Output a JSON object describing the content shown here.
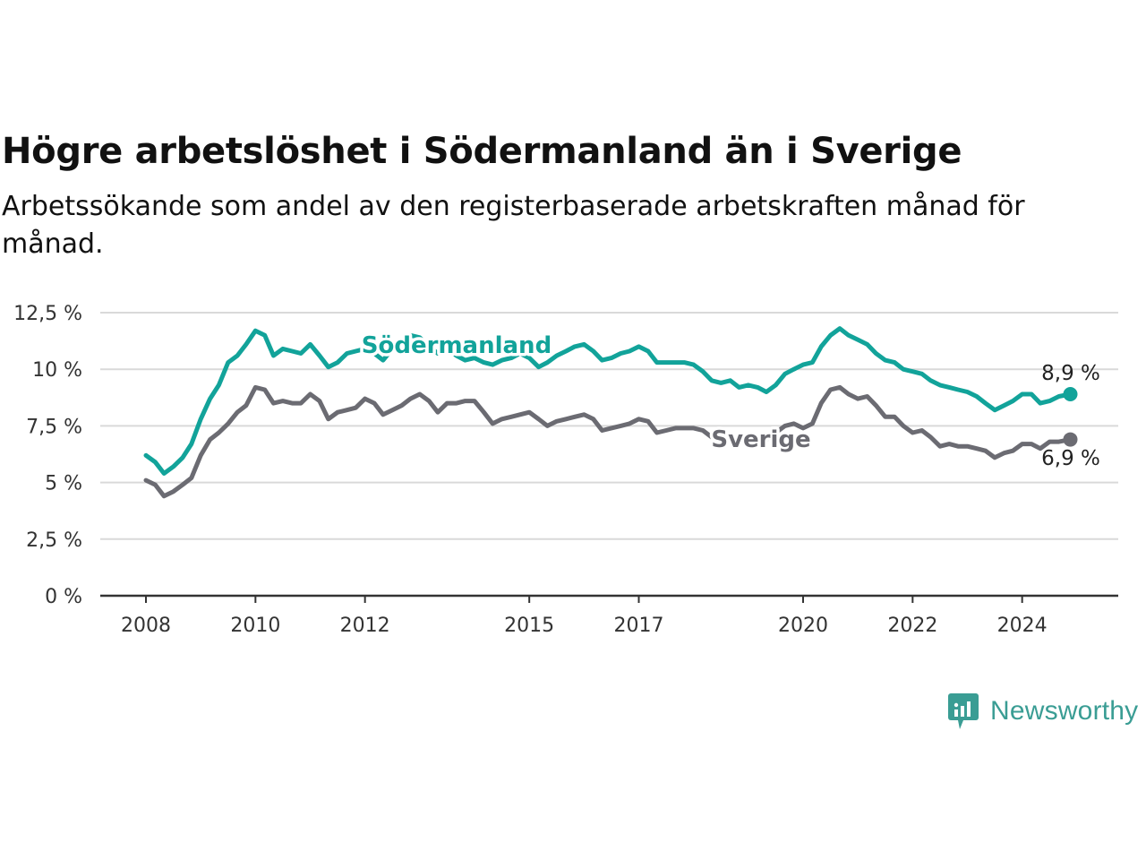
{
  "title": "Högre arbetslöshet i Södermanland än i Sverige",
  "subtitle": "Arbetssökande som andel av den registerbaserade arbetskraften månad för månad.",
  "brand": {
    "name": "Newsworthy",
    "icon": "newsworthy-logo-icon",
    "color": "#3a9d94"
  },
  "chart_data": {
    "type": "line",
    "ylim": [
      0,
      12.5
    ],
    "yticks": [
      "0 %",
      "2,5 %",
      "5 %",
      "7,5 %",
      "10 %",
      "12,5 %"
    ],
    "ytick_values": [
      0,
      2.5,
      5,
      7.5,
      10,
      12.5
    ],
    "xticks": [
      "2008",
      "2010",
      "2012",
      "2015",
      "2017",
      "2020",
      "2022",
      "2024"
    ],
    "xtick_values": [
      2008.0,
      2010.0,
      2012.0,
      2015.0,
      2017.0,
      2020.0,
      2022.0,
      2024.0
    ],
    "grid": true,
    "series": [
      {
        "name": "Södermanland",
        "color": "#12a39a",
        "end_label": "8,9 %",
        "points": [
          [
            2008.0,
            6.2
          ],
          [
            2008.17,
            5.9
          ],
          [
            2008.33,
            5.4
          ],
          [
            2008.5,
            5.7
          ],
          [
            2008.67,
            6.1
          ],
          [
            2008.83,
            6.7
          ],
          [
            2009.0,
            7.8
          ],
          [
            2009.17,
            8.7
          ],
          [
            2009.33,
            9.3
          ],
          [
            2009.5,
            10.3
          ],
          [
            2009.67,
            10.6
          ],
          [
            2009.83,
            11.1
          ],
          [
            2010.0,
            11.7
          ],
          [
            2010.17,
            11.5
          ],
          [
            2010.33,
            10.6
          ],
          [
            2010.5,
            10.9
          ],
          [
            2010.67,
            10.8
          ],
          [
            2010.83,
            10.7
          ],
          [
            2011.0,
            11.1
          ],
          [
            2011.17,
            10.6
          ],
          [
            2011.33,
            10.1
          ],
          [
            2011.5,
            10.3
          ],
          [
            2011.67,
            10.7
          ],
          [
            2011.83,
            10.8
          ],
          [
            2012.0,
            10.9
          ],
          [
            2012.17,
            10.7
          ],
          [
            2012.33,
            10.4
          ],
          [
            2012.5,
            10.9
          ],
          [
            2012.67,
            11.2
          ],
          [
            2012.83,
            11.5
          ],
          [
            2013.0,
            11.4
          ],
          [
            2013.17,
            11.0
          ],
          [
            2013.33,
            10.7
          ],
          [
            2013.5,
            10.9
          ],
          [
            2013.67,
            10.6
          ],
          [
            2013.83,
            10.4
          ],
          [
            2014.0,
            10.5
          ],
          [
            2014.17,
            10.3
          ],
          [
            2014.33,
            10.2
          ],
          [
            2014.5,
            10.4
          ],
          [
            2014.67,
            10.5
          ],
          [
            2014.83,
            10.7
          ],
          [
            2015.0,
            10.5
          ],
          [
            2015.17,
            10.1
          ],
          [
            2015.33,
            10.3
          ],
          [
            2015.5,
            10.6
          ],
          [
            2015.67,
            10.8
          ],
          [
            2015.83,
            11.0
          ],
          [
            2016.0,
            11.1
          ],
          [
            2016.17,
            10.8
          ],
          [
            2016.33,
            10.4
          ],
          [
            2016.5,
            10.5
          ],
          [
            2016.67,
            10.7
          ],
          [
            2016.83,
            10.8
          ],
          [
            2017.0,
            11.0
          ],
          [
            2017.17,
            10.8
          ],
          [
            2017.33,
            10.3
          ],
          [
            2017.5,
            10.3
          ],
          [
            2017.67,
            10.3
          ],
          [
            2017.83,
            10.3
          ],
          [
            2018.0,
            10.2
          ],
          [
            2018.17,
            9.9
          ],
          [
            2018.33,
            9.5
          ],
          [
            2018.5,
            9.4
          ],
          [
            2018.67,
            9.5
          ],
          [
            2018.83,
            9.2
          ],
          [
            2019.0,
            9.3
          ],
          [
            2019.17,
            9.2
          ],
          [
            2019.33,
            9.0
          ],
          [
            2019.5,
            9.3
          ],
          [
            2019.67,
            9.8
          ],
          [
            2019.83,
            10.0
          ],
          [
            2020.0,
            10.2
          ],
          [
            2020.17,
            10.3
          ],
          [
            2020.33,
            11.0
          ],
          [
            2020.5,
            11.5
          ],
          [
            2020.67,
            11.8
          ],
          [
            2020.83,
            11.5
          ],
          [
            2021.0,
            11.3
          ],
          [
            2021.17,
            11.1
          ],
          [
            2021.33,
            10.7
          ],
          [
            2021.5,
            10.4
          ],
          [
            2021.67,
            10.3
          ],
          [
            2021.83,
            10.0
          ],
          [
            2022.0,
            9.9
          ],
          [
            2022.17,
            9.8
          ],
          [
            2022.33,
            9.5
          ],
          [
            2022.5,
            9.3
          ],
          [
            2022.67,
            9.2
          ],
          [
            2022.83,
            9.1
          ],
          [
            2023.0,
            9.0
          ],
          [
            2023.17,
            8.8
          ],
          [
            2023.33,
            8.5
          ],
          [
            2023.5,
            8.2
          ],
          [
            2023.67,
            8.4
          ],
          [
            2023.83,
            8.6
          ],
          [
            2024.0,
            8.9
          ],
          [
            2024.17,
            8.9
          ],
          [
            2024.33,
            8.5
          ],
          [
            2024.5,
            8.6
          ],
          [
            2024.67,
            8.8
          ],
          [
            2024.88,
            8.9
          ]
        ]
      },
      {
        "name": "Sverige",
        "color": "#6b6b72",
        "end_label": "6,9 %",
        "points": [
          [
            2008.0,
            5.1
          ],
          [
            2008.17,
            4.9
          ],
          [
            2008.33,
            4.4
          ],
          [
            2008.5,
            4.6
          ],
          [
            2008.67,
            4.9
          ],
          [
            2008.83,
            5.2
          ],
          [
            2009.0,
            6.2
          ],
          [
            2009.17,
            6.9
          ],
          [
            2009.33,
            7.2
          ],
          [
            2009.5,
            7.6
          ],
          [
            2009.67,
            8.1
          ],
          [
            2009.83,
            8.4
          ],
          [
            2010.0,
            9.2
          ],
          [
            2010.17,
            9.1
          ],
          [
            2010.33,
            8.5
          ],
          [
            2010.5,
            8.6
          ],
          [
            2010.67,
            8.5
          ],
          [
            2010.83,
            8.5
          ],
          [
            2011.0,
            8.9
          ],
          [
            2011.17,
            8.6
          ],
          [
            2011.33,
            7.8
          ],
          [
            2011.5,
            8.1
          ],
          [
            2011.67,
            8.2
          ],
          [
            2011.83,
            8.3
          ],
          [
            2012.0,
            8.7
          ],
          [
            2012.17,
            8.5
          ],
          [
            2012.33,
            8.0
          ],
          [
            2012.5,
            8.2
          ],
          [
            2012.67,
            8.4
          ],
          [
            2012.83,
            8.7
          ],
          [
            2013.0,
            8.9
          ],
          [
            2013.17,
            8.6
          ],
          [
            2013.33,
            8.1
          ],
          [
            2013.5,
            8.5
          ],
          [
            2013.67,
            8.5
          ],
          [
            2013.83,
            8.6
          ],
          [
            2014.0,
            8.6
          ],
          [
            2014.17,
            8.1
          ],
          [
            2014.33,
            7.6
          ],
          [
            2014.5,
            7.8
          ],
          [
            2014.67,
            7.9
          ],
          [
            2014.83,
            8.0
          ],
          [
            2015.0,
            8.1
          ],
          [
            2015.17,
            7.8
          ],
          [
            2015.33,
            7.5
          ],
          [
            2015.5,
            7.7
          ],
          [
            2015.67,
            7.8
          ],
          [
            2015.83,
            7.9
          ],
          [
            2016.0,
            8.0
          ],
          [
            2016.17,
            7.8
          ],
          [
            2016.33,
            7.3
          ],
          [
            2016.5,
            7.4
          ],
          [
            2016.67,
            7.5
          ],
          [
            2016.83,
            7.6
          ],
          [
            2017.0,
            7.8
          ],
          [
            2017.17,
            7.7
          ],
          [
            2017.33,
            7.2
          ],
          [
            2017.5,
            7.3
          ],
          [
            2017.67,
            7.4
          ],
          [
            2017.83,
            7.4
          ],
          [
            2018.0,
            7.4
          ],
          [
            2018.17,
            7.3
          ],
          [
            2018.33,
            7.0
          ],
          [
            2018.5,
            6.9
          ],
          [
            2018.67,
            7.0
          ],
          [
            2018.83,
            6.9
          ],
          [
            2019.0,
            7.0
          ],
          [
            2019.17,
            7.0
          ],
          [
            2019.33,
            6.9
          ],
          [
            2019.5,
            7.2
          ],
          [
            2019.67,
            7.5
          ],
          [
            2019.83,
            7.6
          ],
          [
            2020.0,
            7.4
          ],
          [
            2020.17,
            7.6
          ],
          [
            2020.33,
            8.5
          ],
          [
            2020.5,
            9.1
          ],
          [
            2020.67,
            9.2
          ],
          [
            2020.83,
            8.9
          ],
          [
            2021.0,
            8.7
          ],
          [
            2021.17,
            8.8
          ],
          [
            2021.33,
            8.4
          ],
          [
            2021.5,
            7.9
          ],
          [
            2021.67,
            7.9
          ],
          [
            2021.83,
            7.5
          ],
          [
            2022.0,
            7.2
          ],
          [
            2022.17,
            7.3
          ],
          [
            2022.33,
            7.0
          ],
          [
            2022.5,
            6.6
          ],
          [
            2022.67,
            6.7
          ],
          [
            2022.83,
            6.6
          ],
          [
            2023.0,
            6.6
          ],
          [
            2023.17,
            6.5
          ],
          [
            2023.33,
            6.4
          ],
          [
            2023.5,
            6.1
          ],
          [
            2023.67,
            6.3
          ],
          [
            2023.83,
            6.4
          ],
          [
            2024.0,
            6.7
          ],
          [
            2024.17,
            6.7
          ],
          [
            2024.33,
            6.5
          ],
          [
            2024.5,
            6.8
          ],
          [
            2024.67,
            6.8
          ],
          [
            2024.88,
            6.9
          ]
        ]
      }
    ]
  }
}
